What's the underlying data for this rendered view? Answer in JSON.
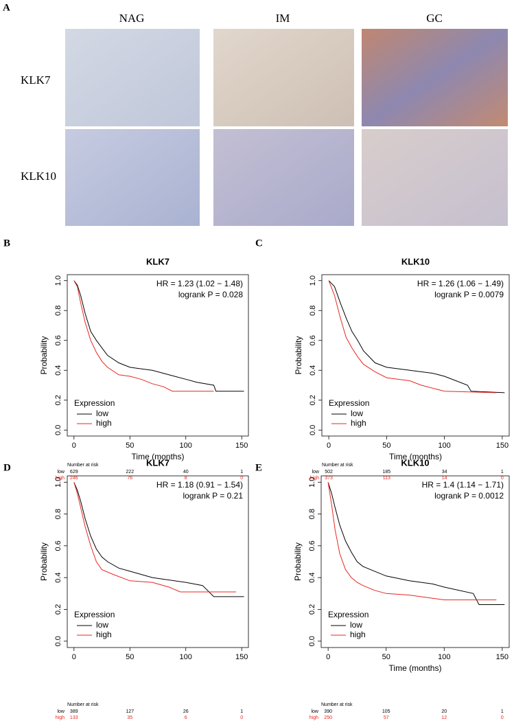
{
  "panel_a": {
    "label": "A",
    "columns": [
      "NAG",
      "IM",
      "GC"
    ],
    "rows": [
      "KLK7",
      "KLK10"
    ]
  },
  "chart_data": [
    {
      "type": "line",
      "panel": "B",
      "title": "KLK7",
      "annotations": [
        "HR = 1.23 (1.02 − 1.48)",
        "logrank P = 0.028"
      ],
      "xlabel": "Time (months)",
      "ylabel": "Probability",
      "legend_title": "Expression",
      "xlim": [
        -6,
        156
      ],
      "xticks": [
        0,
        50,
        100,
        150
      ],
      "ylim": [
        -0.04,
        1.04
      ],
      "yticks": [
        {
          "value": 0,
          "label": "0.0"
        },
        0.2,
        0.4,
        0.6,
        0.8,
        {
          "value": 1,
          "label": "1.0"
        }
      ],
      "series": [
        {
          "name": "low",
          "color": "#000000",
          "x": [
            0,
            3,
            6,
            10,
            15,
            20,
            25,
            30,
            40,
            50,
            60,
            70,
            80,
            90,
            100,
            110,
            125,
            127,
            152
          ],
          "values": [
            1,
            0.97,
            0.9,
            0.78,
            0.66,
            0.6,
            0.55,
            0.5,
            0.45,
            0.42,
            0.41,
            0.4,
            0.38,
            0.36,
            0.34,
            0.32,
            0.3,
            0.26,
            0.26
          ]
        },
        {
          "name": "high",
          "color": "#e8251f",
          "x": [
            0,
            3,
            6,
            10,
            15,
            20,
            25,
            30,
            40,
            50,
            60,
            70,
            80,
            88,
            125
          ],
          "values": [
            1,
            0.96,
            0.85,
            0.72,
            0.6,
            0.52,
            0.46,
            0.42,
            0.37,
            0.36,
            0.34,
            0.31,
            0.29,
            0.26,
            0.26
          ]
        }
      ],
      "risk_title": "Number at risk",
      "risk_table": [
        {
          "name": "low",
          "values": [
            629,
            222,
            40,
            1
          ]
        },
        {
          "name": "high",
          "values": [
            246,
            76,
            8,
            0
          ]
        }
      ]
    },
    {
      "type": "line",
      "panel": "C",
      "title": "KLK10",
      "annotations": [
        "HR = 1.26 (1.06 − 1.49)",
        "logrank P = 0.0079"
      ],
      "xlabel": "Time (months)",
      "ylabel": "Probability",
      "legend_title": "Expression",
      "xlim": [
        -6,
        156
      ],
      "xticks": [
        0,
        50,
        100,
        150
      ],
      "ylim": [
        -0.04,
        1.04
      ],
      "yticks": [
        {
          "value": 0,
          "label": "0.0"
        },
        0.2,
        0.4,
        0.6,
        0.8,
        {
          "value": 1,
          "label": "1.0"
        }
      ],
      "series": [
        {
          "name": "low",
          "color": "#000000",
          "x": [
            0,
            5,
            10,
            15,
            20,
            25,
            30,
            40,
            50,
            70,
            90,
            100,
            110,
            120,
            123,
            152
          ],
          "values": [
            1,
            0.96,
            0.85,
            0.75,
            0.66,
            0.6,
            0.53,
            0.45,
            0.42,
            0.4,
            0.38,
            0.36,
            0.33,
            0.3,
            0.26,
            0.25
          ]
        },
        {
          "name": "high",
          "color": "#e8251f",
          "x": [
            0,
            5,
            10,
            15,
            20,
            25,
            30,
            40,
            50,
            70,
            80,
            100,
            145
          ],
          "values": [
            1,
            0.9,
            0.75,
            0.62,
            0.55,
            0.49,
            0.44,
            0.39,
            0.35,
            0.33,
            0.3,
            0.26,
            0.25
          ]
        }
      ],
      "risk_title": "Number at risk",
      "risk_table": [
        {
          "name": "low",
          "values": [
            502,
            185,
            34,
            1
          ]
        },
        {
          "name": "high",
          "values": [
            373,
            113,
            14,
            0
          ]
        }
      ]
    },
    {
      "type": "line",
      "panel": "D",
      "title": "KLK7",
      "annotations": [
        "HR = 1.18 (0.91 − 1.54)",
        "logrank P = 0.21"
      ],
      "ylabel": "Probability",
      "legend_title": "Expression",
      "xlim": [
        -6,
        156
      ],
      "xticks": [
        0,
        50,
        100,
        150
      ],
      "ylim": [
        -0.04,
        1.04
      ],
      "yticks": [
        {
          "value": 0,
          "label": "0.0"
        },
        0.2,
        0.4,
        0.6,
        0.8,
        {
          "value": 1,
          "label": "1.0"
        }
      ],
      "series": [
        {
          "name": "low",
          "color": "#000000",
          "x": [
            0,
            3,
            6,
            10,
            15,
            20,
            25,
            30,
            40,
            50,
            60,
            70,
            80,
            100,
            115,
            125,
            152
          ],
          "values": [
            1,
            0.95,
            0.88,
            0.77,
            0.66,
            0.58,
            0.53,
            0.5,
            0.46,
            0.44,
            0.42,
            0.4,
            0.39,
            0.37,
            0.35,
            0.28,
            0.28
          ]
        },
        {
          "name": "high",
          "color": "#e8251f",
          "x": [
            0,
            3,
            6,
            10,
            15,
            20,
            25,
            35,
            50,
            70,
            85,
            95,
            145
          ],
          "values": [
            1,
            0.93,
            0.84,
            0.72,
            0.6,
            0.5,
            0.45,
            0.42,
            0.38,
            0.37,
            0.34,
            0.31,
            0.31
          ]
        }
      ],
      "risk_title": "Number at risk",
      "risk_table": [
        {
          "name": "low",
          "values": [
            389,
            127,
            26,
            1
          ]
        },
        {
          "name": "high",
          "values": [
            133,
            35,
            6,
            0
          ]
        }
      ]
    },
    {
      "type": "line",
      "panel": "E",
      "title": "KLK10",
      "annotations": [
        "HR = 1.4 (1.14 − 1.71)",
        "logrank P = 0.0012"
      ],
      "xlabel": "Time (months)",
      "ylabel": "Probability",
      "legend_title": "Expression",
      "xlim": [
        -6,
        156
      ],
      "xticks": [
        0,
        50,
        100,
        150
      ],
      "ylim": [
        -0.04,
        1.04
      ],
      "yticks": [
        {
          "value": 0,
          "label": "0.0"
        },
        0.2,
        0.4,
        0.6,
        0.8,
        {
          "value": 1,
          "label": "1.0"
        }
      ],
      "series": [
        {
          "name": "low",
          "color": "#000000",
          "x": [
            0,
            3,
            6,
            10,
            15,
            20,
            25,
            30,
            40,
            50,
            70,
            90,
            100,
            125,
            130,
            152
          ],
          "values": [
            1,
            0.93,
            0.84,
            0.73,
            0.63,
            0.56,
            0.5,
            0.47,
            0.44,
            0.41,
            0.38,
            0.36,
            0.34,
            0.3,
            0.23,
            0.23
          ]
        },
        {
          "name": "high",
          "color": "#e8251f",
          "x": [
            0,
            3,
            6,
            10,
            15,
            20,
            25,
            30,
            40,
            50,
            70,
            90,
            100,
            145
          ],
          "values": [
            1,
            0.86,
            0.7,
            0.55,
            0.45,
            0.4,
            0.37,
            0.35,
            0.32,
            0.3,
            0.29,
            0.27,
            0.26,
            0.26
          ]
        }
      ],
      "risk_title": "Number at risk",
      "risk_table": [
        {
          "name": "low",
          "values": [
            390,
            105,
            20,
            1
          ]
        },
        {
          "name": "high",
          "values": [
            250,
            57,
            12,
            0
          ]
        }
      ]
    }
  ]
}
